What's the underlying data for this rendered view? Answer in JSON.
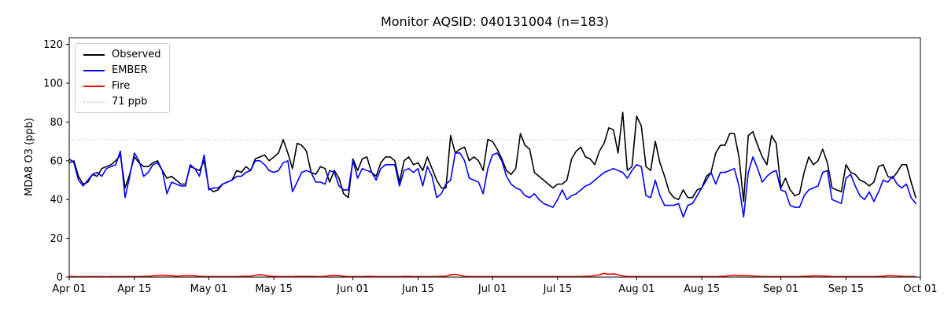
{
  "chart_data": {
    "type": "line",
    "title": "Monitor AQSID: 040131004 (n=183)",
    "xlabel": "",
    "ylabel": "MDA8 O3 (ppb)",
    "n_points": 183,
    "x_unit": "day",
    "x_start": "Apr 01",
    "x_end": "Sep 30",
    "ylim": [
      0,
      123.5
    ],
    "y_ticks": [
      0,
      20,
      40,
      60,
      80,
      100,
      120
    ],
    "x_ticks": [
      {
        "day": 0,
        "label": "Apr 01"
      },
      {
        "day": 14,
        "label": "Apr 15"
      },
      {
        "day": 30,
        "label": "May 01"
      },
      {
        "day": 44,
        "label": "May 15"
      },
      {
        "day": 61,
        "label": "Jun 01"
      },
      {
        "day": 75,
        "label": "Jun 15"
      },
      {
        "day": 91,
        "label": "Jul 01"
      },
      {
        "day": 105,
        "label": "Jul 15"
      },
      {
        "day": 122,
        "label": "Aug 01"
      },
      {
        "day": 136,
        "label": "Aug 15"
      },
      {
        "day": 153,
        "label": "Sep 01"
      },
      {
        "day": 167,
        "label": "Sep 15"
      },
      {
        "day": 183,
        "label": "Oct 01"
      }
    ],
    "threshold": {
      "label": "71 ppb",
      "value": 71,
      "color": "#d3d3d3",
      "style": "dotted"
    },
    "legend_position": "upper-left",
    "grid": false,
    "series": [
      {
        "name": "Observed",
        "color": "#000000",
        "values": [
          59,
          60,
          52,
          48,
          49,
          53,
          52,
          56,
          57,
          58,
          60,
          63,
          46,
          53,
          62,
          59,
          57,
          57,
          59,
          60,
          55,
          51,
          52,
          50,
          48,
          48,
          57,
          56,
          55,
          60,
          46,
          44,
          45,
          48,
          49,
          50,
          55,
          54,
          57,
          55,
          61,
          62,
          63,
          60,
          62,
          64,
          71,
          64,
          56,
          69,
          68,
          65,
          54,
          53,
          57,
          56,
          49,
          55,
          51,
          43,
          41,
          61,
          55,
          61,
          62,
          54,
          52,
          59,
          62,
          62,
          60,
          49,
          60,
          62,
          58,
          59,
          55,
          62,
          56,
          50,
          46,
          46,
          73,
          64,
          66,
          67,
          60,
          62,
          60,
          55,
          71,
          70,
          66,
          61,
          55,
          53,
          56,
          74,
          68,
          66,
          54,
          52,
          50,
          48,
          46,
          48,
          48,
          50,
          61,
          65,
          67,
          62,
          61,
          58,
          65,
          69,
          77,
          76,
          64,
          85,
          55,
          57,
          83,
          78,
          57,
          55,
          70,
          59,
          52,
          44,
          41,
          40,
          45,
          41,
          41,
          45,
          46,
          52,
          54,
          64,
          68,
          68,
          74,
          74,
          62,
          39,
          73,
          75,
          68,
          62,
          58,
          73,
          69,
          46,
          51,
          45,
          42,
          43,
          54,
          62,
          58,
          60,
          66,
          59,
          46,
          45,
          44,
          58,
          54,
          53,
          50,
          49,
          47,
          49,
          57,
          58,
          52,
          51,
          54,
          58,
          58,
          49,
          41
        ]
      },
      {
        "name": "EMBER",
        "color": "#0000ff",
        "values": [
          61,
          59,
          50,
          47,
          50,
          53,
          54,
          52,
          56,
          57,
          58,
          65,
          41,
          52,
          64,
          60,
          52,
          54,
          58,
          59,
          55,
          43,
          49,
          48,
          47,
          47,
          58,
          56,
          52,
          63,
          45,
          46,
          46,
          48,
          49,
          50,
          52,
          52,
          54,
          55,
          60,
          60,
          58,
          55,
          54,
          55,
          59,
          60,
          44,
          49,
          54,
          55,
          54,
          49,
          49,
          48,
          55,
          54,
          47,
          45,
          45,
          60,
          51,
          56,
          55,
          54,
          50,
          56,
          58,
          58,
          58,
          47,
          55,
          56,
          54,
          56,
          47,
          57,
          52,
          41,
          43,
          48,
          50,
          64,
          64,
          60,
          51,
          50,
          49,
          43,
          56,
          63,
          64,
          60,
          52,
          48,
          46,
          45,
          42,
          41,
          43,
          40,
          38,
          37,
          36,
          40,
          45,
          40,
          42,
          43,
          45,
          47,
          48,
          50,
          52,
          54,
          55,
          56,
          55,
          54,
          51,
          55,
          58,
          57,
          42,
          41,
          50,
          42,
          37,
          37,
          37,
          38,
          31,
          37,
          38,
          42,
          46,
          50,
          54,
          48,
          54,
          54,
          55,
          56,
          47,
          31,
          54,
          62,
          56,
          49,
          52,
          54,
          55,
          45,
          44,
          37,
          36,
          36,
          42,
          45,
          46,
          47,
          54,
          55,
          40,
          39,
          38,
          51,
          53,
          47,
          42,
          40,
          44,
          39,
          44,
          50,
          49,
          52,
          48,
          46,
          48,
          41,
          38
        ]
      },
      {
        "name": "Fire",
        "color": "#ff0000",
        "values": [
          0.3,
          0.3,
          0.2,
          0.3,
          0.3,
          0.3,
          0.3,
          0.3,
          0.2,
          0.3,
          0.3,
          0.3,
          0.3,
          0.3,
          0.3,
          0.3,
          0.4,
          0.4,
          0.7,
          0.9,
          1.0,
          0.9,
          0.8,
          0.5,
          0.6,
          0.8,
          0.8,
          0.7,
          0.4,
          0.3,
          0.3,
          0.3,
          0.3,
          0.3,
          0.3,
          0.3,
          0.3,
          0.4,
          0.4,
          0.5,
          1.0,
          1.3,
          1.0,
          0.5,
          0.4,
          0.3,
          0.3,
          0.3,
          0.3,
          0.4,
          0.4,
          0.4,
          0.4,
          0.3,
          0.3,
          0.4,
          0.8,
          0.9,
          0.8,
          0.5,
          0.3,
          0.3,
          0.3,
          0.3,
          0.4,
          0.4,
          0.3,
          0.3,
          0.3,
          0.3,
          0.3,
          0.3,
          0.4,
          0.4,
          0.3,
          0.3,
          0.3,
          0.3,
          0.3,
          0.3,
          0.4,
          0.5,
          1.2,
          1.4,
          1.0,
          0.4,
          0.3,
          0.3,
          0.3,
          0.3,
          0.3,
          0.3,
          0.3,
          0.3,
          0.3,
          0.3,
          0.3,
          0.3,
          0.3,
          0.3,
          0.3,
          0.3,
          0.3,
          0.3,
          0.3,
          0.3,
          0.3,
          0.3,
          0.3,
          0.3,
          0.3,
          0.4,
          0.5,
          0.8,
          1.2,
          1.9,
          1.4,
          1.7,
          1.2,
          0.6,
          0.4,
          0.3,
          0.3,
          0.3,
          0.3,
          0.3,
          0.3,
          0.3,
          0.3,
          0.3,
          0.3,
          0.3,
          0.3,
          0.3,
          0.3,
          0.3,
          0.3,
          0.3,
          0.3,
          0.3,
          0.4,
          0.5,
          0.8,
          1.0,
          0.9,
          0.8,
          0.8,
          0.6,
          0.4,
          0.3,
          0.3,
          0.3,
          0.3,
          0.3,
          0.3,
          0.3,
          0.3,
          0.3,
          0.4,
          0.5,
          0.7,
          0.7,
          0.6,
          0.5,
          0.3,
          0.3,
          0.3,
          0.3,
          0.3,
          0.3,
          0.3,
          0.3,
          0.3,
          0.3,
          0.4,
          0.5,
          0.8,
          0.8,
          0.6,
          0.4,
          0.3,
          0.3,
          0.3
        ]
      }
    ]
  }
}
